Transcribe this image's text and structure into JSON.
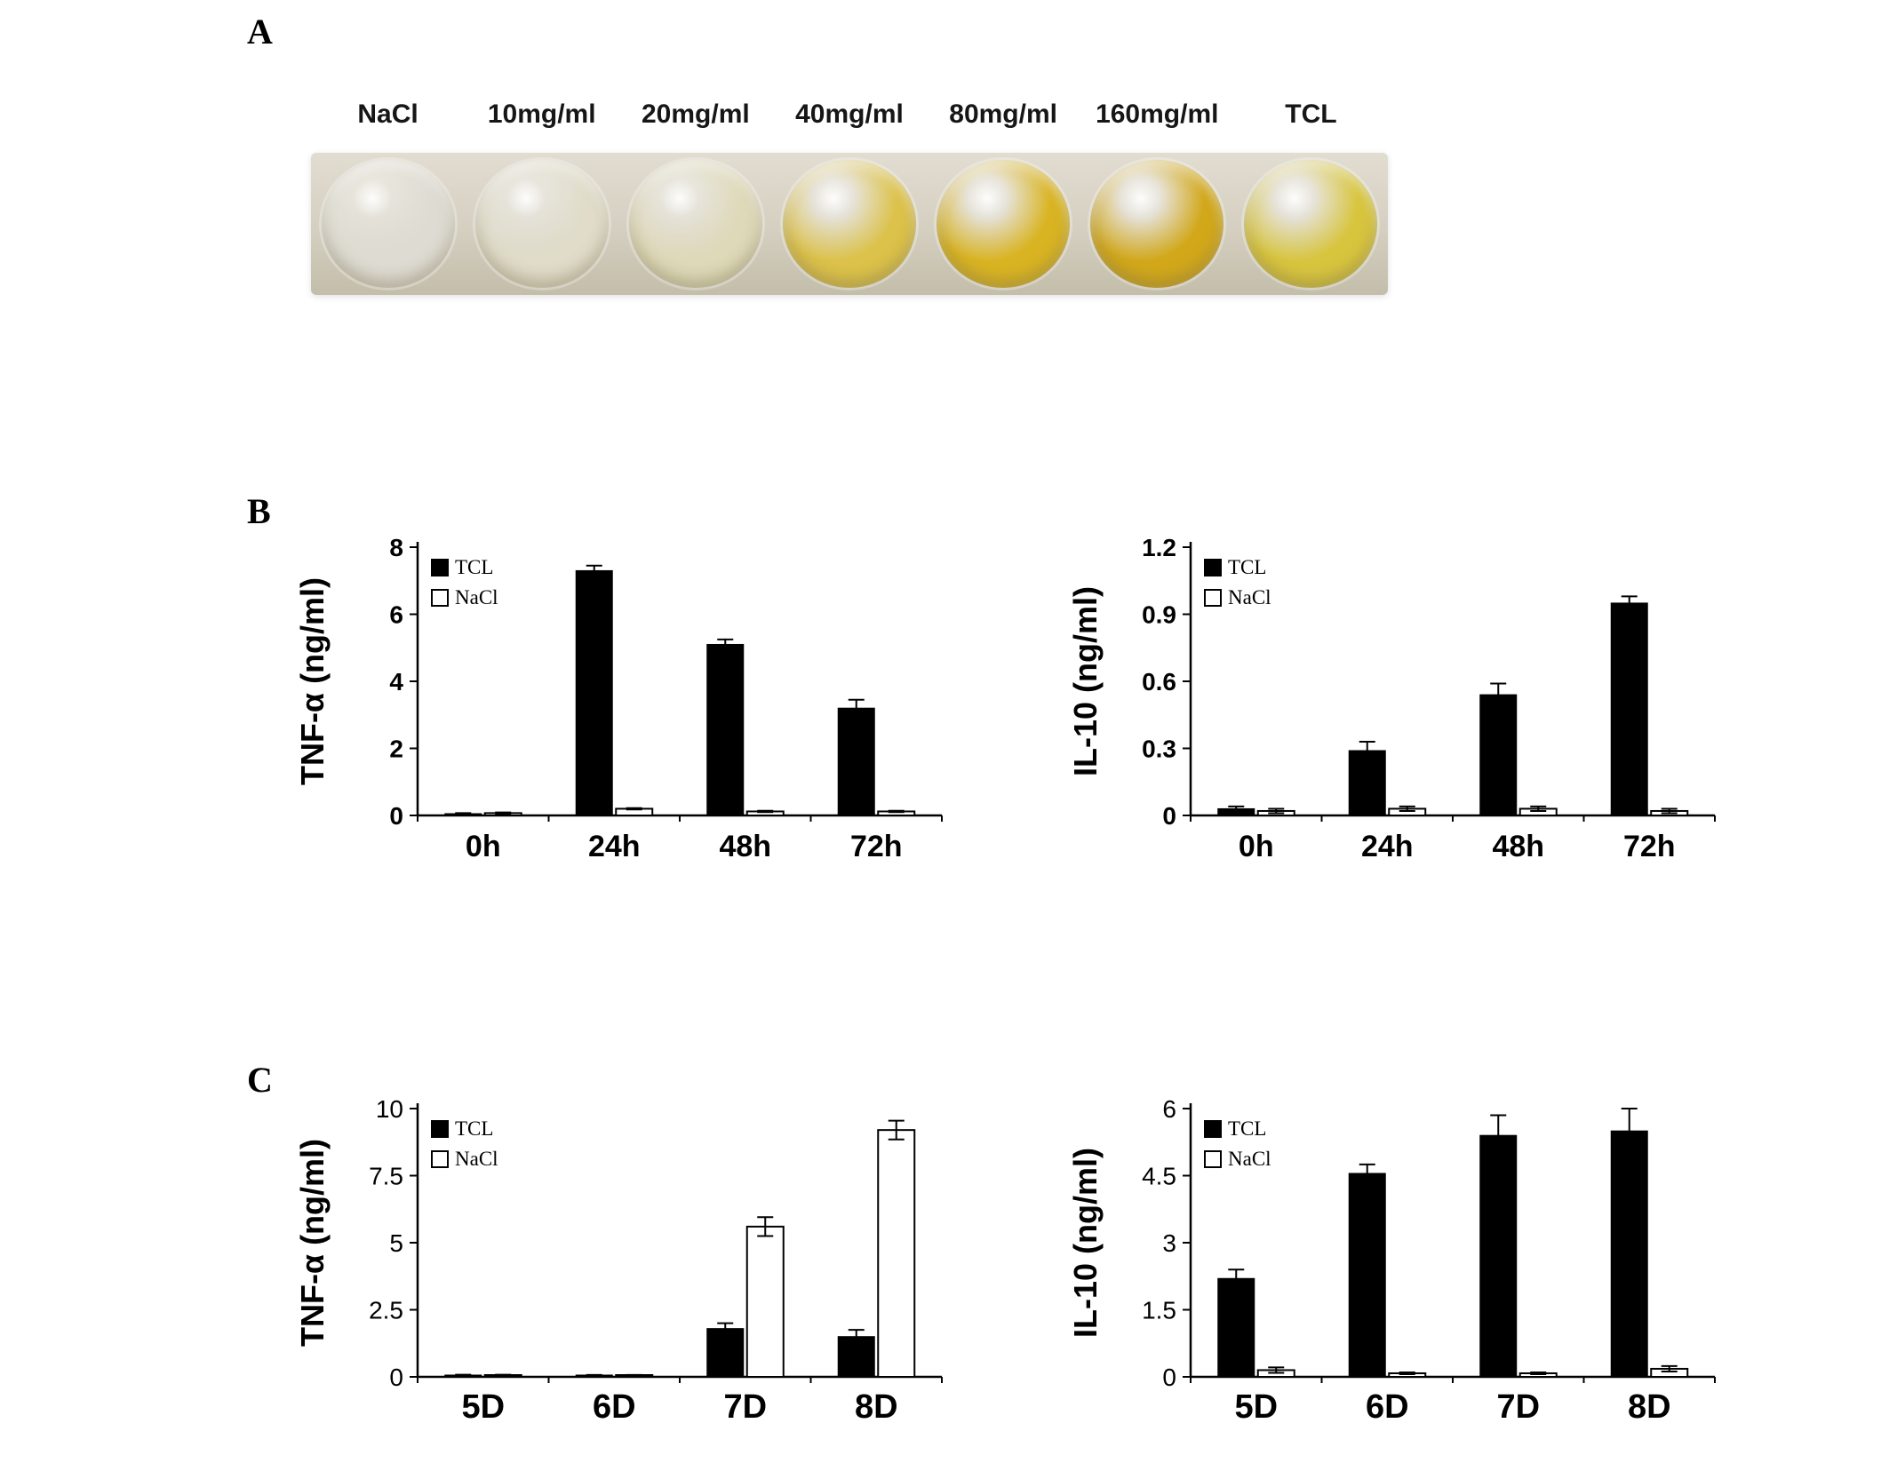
{
  "figure": {
    "panel_a": {
      "label": "A",
      "well_labels": [
        "NaCl",
        "10mg/ml",
        "20mg/ml",
        "40mg/ml",
        "80mg/ml",
        "160mg/ml",
        "TCL"
      ],
      "well_colors": [
        "#dedbd2",
        "#e0dcc9",
        "#ded9b8",
        "#dcc24a",
        "#d9b422",
        "#d2a81a",
        "#d8c53e"
      ]
    },
    "panel_b": {
      "label": "B"
    },
    "panel_c": {
      "label": "C"
    }
  },
  "chart_data": [
    {
      "id": "tnf-alpha-hours",
      "panel": "B",
      "type": "bar",
      "title": "",
      "ylabel": "TNF-α (ng/ml)",
      "xlabel": "",
      "categories": [
        "0h",
        "24h",
        "48h",
        "72h"
      ],
      "series": [
        {
          "name": "TCL",
          "color": "#000000",
          "values": [
            0.05,
            7.3,
            5.1,
            3.2
          ],
          "errors": [
            0.02,
            0.15,
            0.15,
            0.25
          ]
        },
        {
          "name": "NaCl",
          "color": "#ffffff",
          "values": [
            0.07,
            0.2,
            0.12,
            0.12
          ],
          "errors": [
            0.02,
            0.02,
            0.02,
            0.02
          ]
        }
      ],
      "ylim": [
        0,
        8
      ],
      "yticks": [
        0,
        2,
        4,
        6,
        8
      ],
      "grid": false,
      "legend_position": "top-left",
      "ytick_bold": true,
      "xtick_fontsize": 34
    },
    {
      "id": "il10-hours",
      "panel": "B",
      "type": "bar",
      "title": "",
      "ylabel": "IL-10 (ng/ml)",
      "xlabel": "",
      "categories": [
        "0h",
        "24h",
        "48h",
        "72h"
      ],
      "series": [
        {
          "name": "TCL",
          "color": "#000000",
          "values": [
            0.03,
            0.29,
            0.54,
            0.95
          ],
          "errors": [
            0.01,
            0.04,
            0.05,
            0.03
          ]
        },
        {
          "name": "NaCl",
          "color": "#ffffff",
          "values": [
            0.02,
            0.03,
            0.03,
            0.02
          ],
          "errors": [
            0.01,
            0.01,
            0.01,
            0.01
          ]
        }
      ],
      "ylim": [
        0,
        1.2
      ],
      "yticks": [
        0,
        0.3,
        0.6,
        0.9,
        1.2
      ],
      "grid": false,
      "legend_position": "top-left",
      "ytick_bold": true,
      "xtick_fontsize": 34
    },
    {
      "id": "tnf-alpha-days",
      "panel": "C",
      "type": "bar",
      "title": "",
      "ylabel": "TNF-α (ng/ml)",
      "xlabel": "",
      "categories": [
        "5D",
        "6D",
        "7D",
        "8D"
      ],
      "series": [
        {
          "name": "TCL",
          "color": "#000000",
          "values": [
            0.06,
            0.05,
            1.8,
            1.5
          ],
          "errors": [
            0.02,
            0.02,
            0.2,
            0.25
          ]
        },
        {
          "name": "NaCl",
          "color": "#ffffff",
          "values": [
            0.06,
            0.05,
            5.6,
            9.2
          ],
          "errors": [
            0.02,
            0.02,
            0.35,
            0.35
          ]
        }
      ],
      "ylim": [
        0,
        10
      ],
      "yticks": [
        0,
        2.5,
        5,
        7.5,
        10
      ],
      "grid": false,
      "legend_position": "top-left",
      "ytick_bold": false,
      "xtick_fontsize": 38
    },
    {
      "id": "il10-days",
      "panel": "C",
      "type": "bar",
      "title": "",
      "ylabel": "IL-10 (ng/ml)",
      "xlabel": "",
      "categories": [
        "5D",
        "6D",
        "7D",
        "8D"
      ],
      "series": [
        {
          "name": "TCL",
          "color": "#000000",
          "values": [
            2.2,
            4.55,
            5.4,
            5.5
          ],
          "errors": [
            0.2,
            0.2,
            0.45,
            0.5
          ]
        },
        {
          "name": "NaCl",
          "color": "#ffffff",
          "values": [
            0.15,
            0.08,
            0.08,
            0.18
          ],
          "errors": [
            0.06,
            0.02,
            0.02,
            0.06
          ]
        }
      ],
      "ylim": [
        0,
        6
      ],
      "yticks": [
        0,
        1.5,
        3,
        4.5,
        6
      ],
      "grid": false,
      "legend_position": "top-left",
      "ytick_bold": false,
      "xtick_fontsize": 38
    }
  ]
}
